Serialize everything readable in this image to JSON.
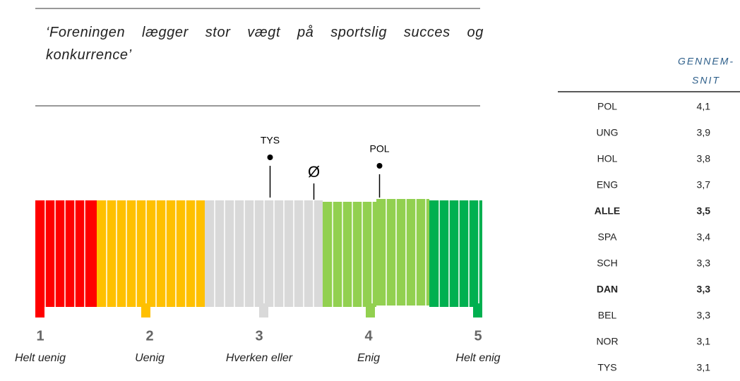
{
  "quote": "‘Foreningen lægger stor vægt på sportslig succes og konkurrence’",
  "scale": {
    "xlim": [
      1,
      5
    ],
    "ticks": [
      1,
      2,
      3,
      4,
      5
    ],
    "tick_labels": [
      "Helt uenig",
      "Uenig",
      "Hverken eller",
      "Enig",
      "Helt enig"
    ]
  },
  "markers": [
    {
      "label": "TYS",
      "value": 3.1
    },
    {
      "label": "Ø",
      "value": 3.5
    },
    {
      "label": "POL",
      "value": 4.1
    }
  ],
  "table": {
    "header": "GENNEM-\nSNIT",
    "rows": [
      [
        "POL",
        "4,1"
      ],
      [
        "UNG",
        "3,9"
      ],
      [
        "HOL",
        "3,8"
      ],
      [
        "ENG",
        "3,7"
      ],
      [
        "ALLE",
        "3,5"
      ],
      [
        "SPA",
        "3,4"
      ],
      [
        "SCH",
        "3,3"
      ],
      [
        "DAN",
        "3,3"
      ],
      [
        "BEL",
        "3,3"
      ],
      [
        "NOR",
        "3,1"
      ],
      [
        "TYS",
        "3,1"
      ]
    ],
    "bold_rows": [
      4,
      7
    ]
  }
}
